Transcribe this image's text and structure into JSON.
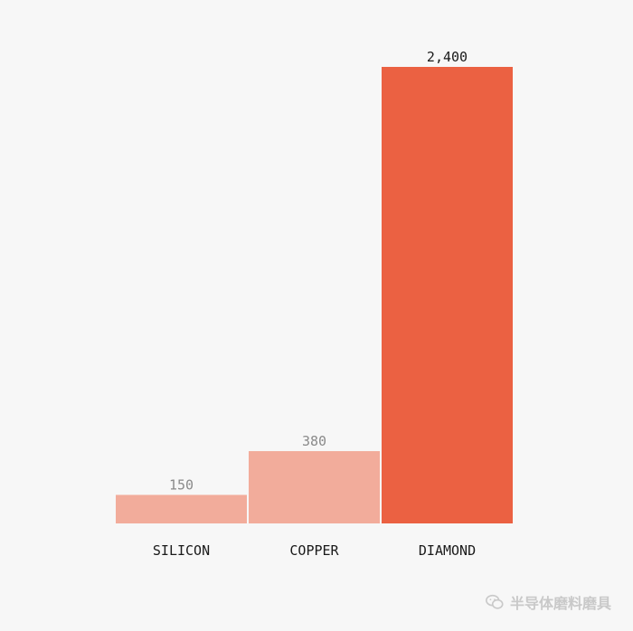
{
  "chart_data": {
    "type": "bar",
    "categories": [
      "SILICON",
      "COPPER",
      "DIAMOND"
    ],
    "values": [
      150,
      380,
      2400
    ],
    "value_labels": [
      "150",
      "380",
      "2,400"
    ],
    "ylim": [
      0,
      2400
    ],
    "grid": false,
    "colors": {
      "muted": "#f2ac9b",
      "highlight": "#eb6142",
      "muted_label": "#8a8a8a",
      "highlight_label": "#1a1a1a",
      "category_label": "#1a1a1a"
    },
    "highlight_index": 2
  },
  "watermark": {
    "icon": "wechat-icon",
    "text": "半导体磨料磨具"
  }
}
